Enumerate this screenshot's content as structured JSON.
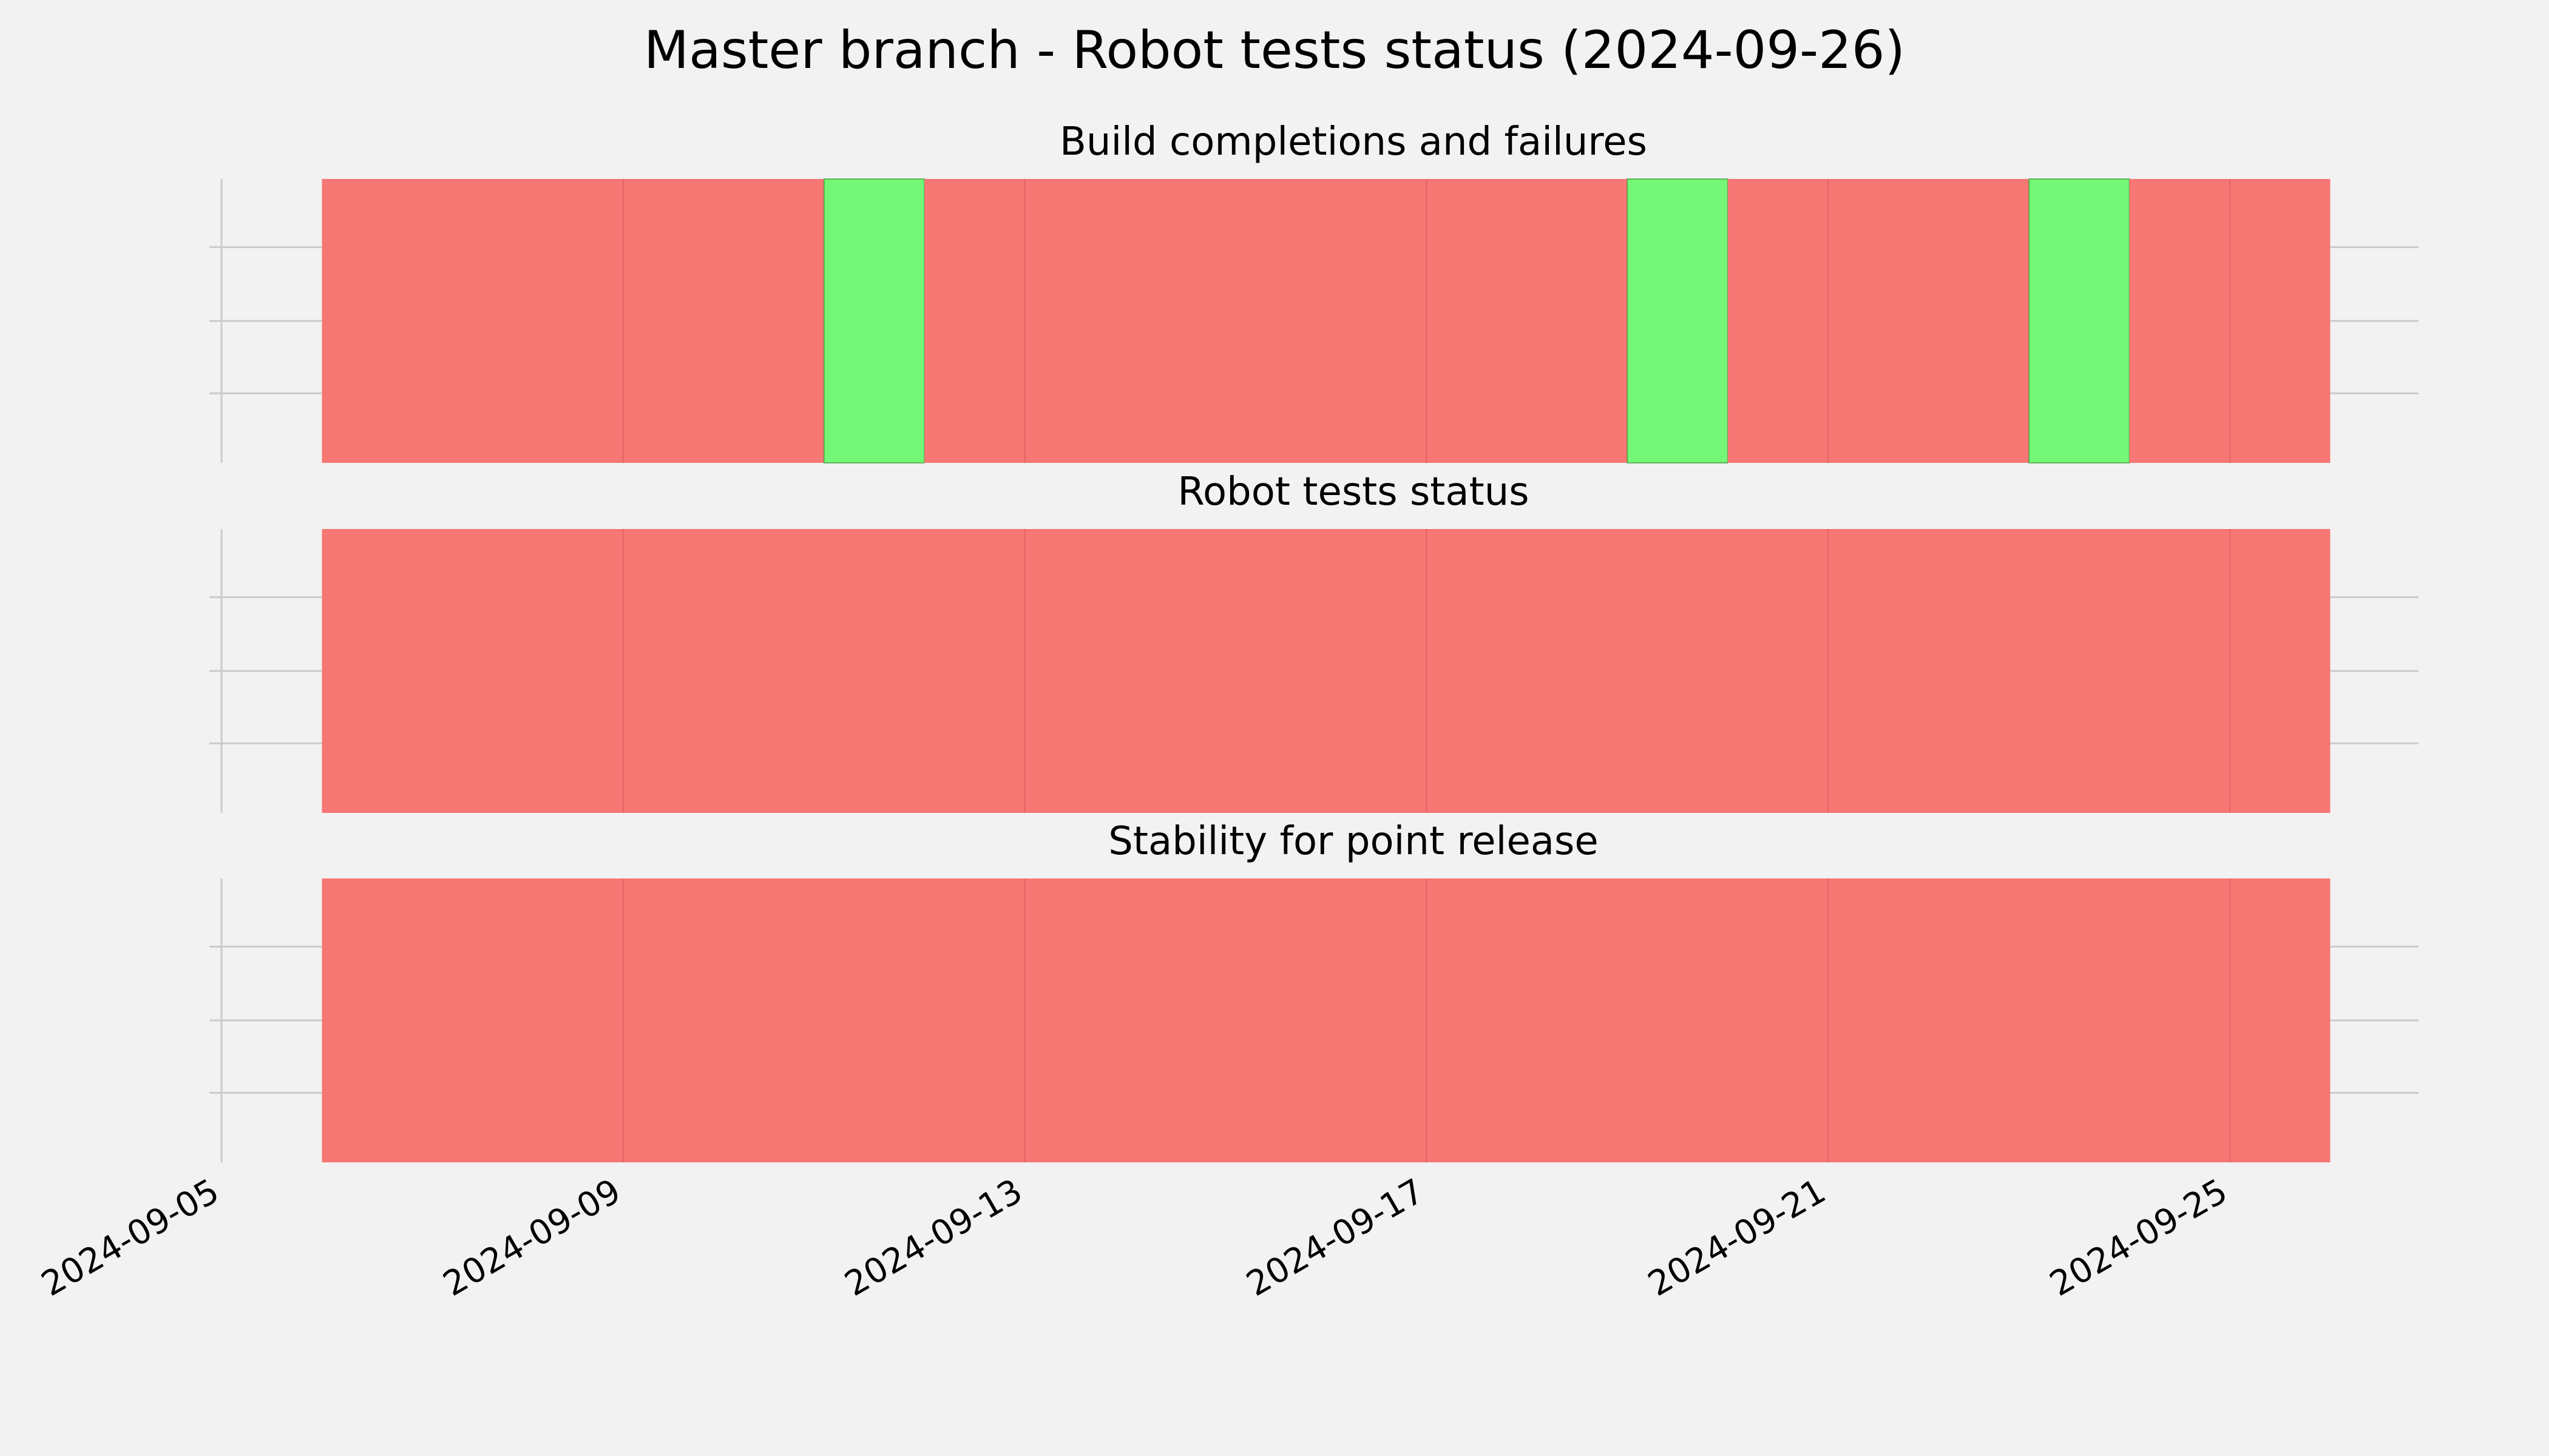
{
  "chart_data": {
    "type": "timeline",
    "title": "Master branch - Robot tests status (2024-09-26)",
    "x_axis": {
      "type": "date",
      "range": [
        "2024-09-05",
        "2024-09-27"
      ],
      "ticks": [
        "2024-09-05",
        "2024-09-09",
        "2024-09-13",
        "2024-09-17",
        "2024-09-21",
        "2024-09-25"
      ]
    },
    "colors": {
      "fail": "#f77774",
      "pass": "#74f777",
      "background": "#f2f2f2",
      "grid": "#cbcbcb"
    },
    "panels": [
      {
        "title": "Build completions and failures",
        "segments": [
          {
            "start": "2024-09-06",
            "end": "2024-09-11",
            "status": "fail"
          },
          {
            "start": "2024-09-11",
            "end": "2024-09-12",
            "status": "pass"
          },
          {
            "start": "2024-09-12",
            "end": "2024-09-19",
            "status": "fail"
          },
          {
            "start": "2024-09-19",
            "end": "2024-09-20",
            "status": "pass"
          },
          {
            "start": "2024-09-20",
            "end": "2024-09-23",
            "status": "fail"
          },
          {
            "start": "2024-09-23",
            "end": "2024-09-24",
            "status": "pass"
          },
          {
            "start": "2024-09-24",
            "end": "2024-09-26",
            "status": "fail"
          }
        ]
      },
      {
        "title": "Robot tests status",
        "segments": [
          {
            "start": "2024-09-06",
            "end": "2024-09-26",
            "status": "fail"
          }
        ]
      },
      {
        "title": "Stability for point release",
        "segments": [
          {
            "start": "2024-09-06",
            "end": "2024-09-26",
            "status": "fail"
          }
        ]
      }
    ]
  }
}
